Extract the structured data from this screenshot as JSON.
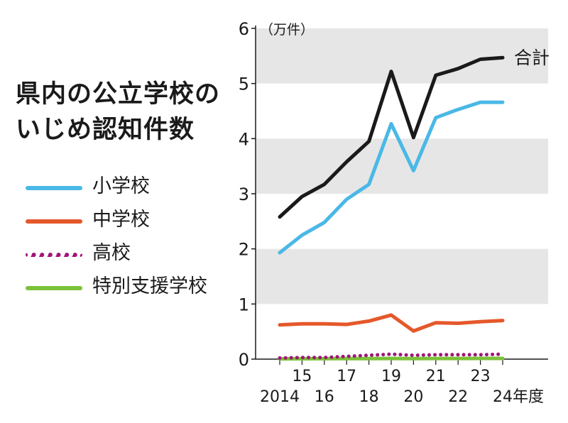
{
  "title": {
    "line1": "県内の公立学校の",
    "line2": "いじめ認知件数"
  },
  "colors": {
    "elementary": "#4ab8e6",
    "junior_high": "#e5582a",
    "high": "#a0147a",
    "special_needs": "#7cc23a",
    "total": "#1a1a1a",
    "band": "#e6e6e6"
  },
  "chart_data": {
    "type": "line",
    "title": "県内の公立学校のいじめ認知件数",
    "unit_label": "（万件）",
    "x": [
      2014,
      2015,
      2016,
      2017,
      2018,
      2019,
      2020,
      2021,
      2022,
      2023,
      2024
    ],
    "x_tick_labels": [
      "2014",
      "15",
      "16",
      "17",
      "18",
      "19",
      "20",
      "21",
      "22",
      "23",
      "24年度"
    ],
    "ylim": [
      0,
      6
    ],
    "y_ticks": [
      0,
      1,
      2,
      3,
      4,
      5,
      6
    ],
    "series": [
      {
        "key": "total",
        "name": "合計",
        "style": "solid",
        "values": [
          2.58,
          2.95,
          3.17,
          3.58,
          3.95,
          5.22,
          4.02,
          5.15,
          5.27,
          5.44,
          5.47
        ]
      },
      {
        "key": "elementary",
        "name": "小学校",
        "style": "solid",
        "values": [
          1.93,
          2.25,
          2.48,
          2.9,
          3.17,
          4.27,
          3.42,
          4.38,
          4.53,
          4.66,
          4.66
        ]
      },
      {
        "key": "junior_high",
        "name": "中学校",
        "style": "solid",
        "values": [
          0.62,
          0.64,
          0.64,
          0.63,
          0.69,
          0.8,
          0.51,
          0.66,
          0.65,
          0.68,
          0.7
        ]
      },
      {
        "key": "high",
        "name": "高校",
        "style": "dotted",
        "values": [
          0.02,
          0.03,
          0.03,
          0.05,
          0.07,
          0.09,
          0.07,
          0.08,
          0.08,
          0.08,
          0.09
        ]
      },
      {
        "key": "special_needs",
        "name": "特別支援学校",
        "style": "solid",
        "values": [
          0.005,
          0.007,
          0.008,
          0.009,
          0.01,
          0.012,
          0.01,
          0.012,
          0.012,
          0.013,
          0.013
        ]
      }
    ],
    "legend": [
      "小学校",
      "中学校",
      "高校",
      "特別支援学校"
    ],
    "end_label": "合計"
  }
}
